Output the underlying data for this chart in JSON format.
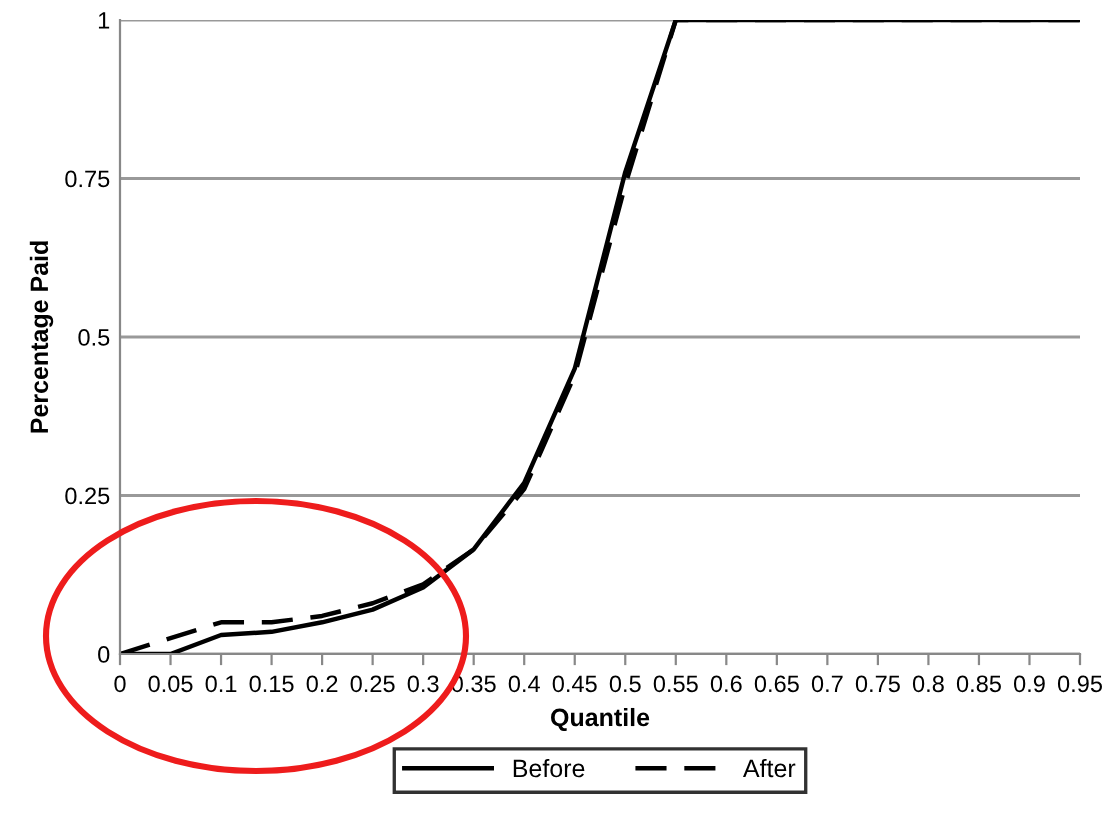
{
  "chart_data": {
    "type": "line",
    "xlabel": "Quantile",
    "ylabel": "Percentage Paid",
    "categories": [
      "0",
      "0.05",
      "0.1",
      "0.15",
      "0.2",
      "0.25",
      "0.3",
      "0.35",
      "0.4",
      "0.45",
      "0.5",
      "0.55",
      "0.6",
      "0.65",
      "0.7",
      "0.75",
      "0.8",
      "0.85",
      "0.9",
      "0.95"
    ],
    "series": [
      {
        "name": "Before",
        "color": "#000000",
        "line_style": "solid",
        "values": [
          0,
          0,
          0.03,
          0.035,
          0.05,
          0.07,
          0.105,
          0.165,
          0.27,
          0.45,
          0.76,
          1,
          1,
          1,
          1,
          1,
          1,
          1,
          1,
          1
        ]
      },
      {
        "name": "After",
        "color": "#000000",
        "line_style": "dashed",
        "values": [
          0,
          0.025,
          0.05,
          0.05,
          0.06,
          0.08,
          0.11,
          0.165,
          0.26,
          0.44,
          0.74,
          1,
          1,
          1,
          1,
          1,
          1,
          1,
          1,
          1
        ]
      }
    ],
    "ylim": [
      0,
      1
    ],
    "yticks": [
      0,
      0.25,
      0.5,
      0.75,
      1
    ],
    "grid": "y",
    "legend": "bottom",
    "marker": "none"
  }
}
